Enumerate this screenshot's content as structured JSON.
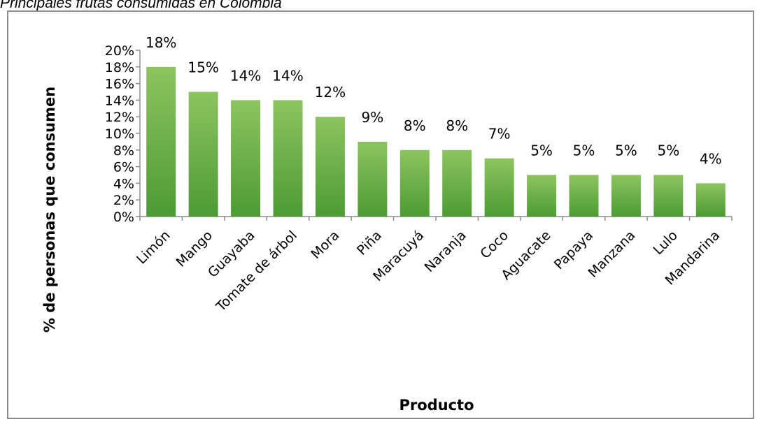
{
  "caption": "Principales frutas consumidas en Colombia",
  "chart_data": {
    "type": "bar",
    "title": "",
    "xlabel": "Producto",
    "ylabel": "% de personas que consumen",
    "categories": [
      "Limón",
      "Mango",
      "Guayaba",
      "Tomate de árbol",
      "Mora",
      "Piña",
      "Maracuyá",
      "Naranja",
      "Coco",
      "Aguacate",
      "Papaya",
      "Manzana",
      "Lulo",
      "Mandarina"
    ],
    "values": [
      18,
      15,
      14,
      14,
      12,
      9,
      8,
      8,
      7,
      5,
      5,
      5,
      5,
      4
    ],
    "data_labels": [
      "18%",
      "15%",
      "14%",
      "14%",
      "12%",
      "9%",
      "8%",
      "8%",
      "7%",
      "5%",
      "5%",
      "5%",
      "5%",
      "4%"
    ],
    "yticks": [
      "0%",
      "2%",
      "4%",
      "6%",
      "8%",
      "10%",
      "12%",
      "14%",
      "16%",
      "18%",
      "20%"
    ],
    "ylim": [
      0,
      20
    ],
    "grid": false,
    "legend": "none",
    "bar_color": "#79b84a",
    "bar_color_dark": "#3f8f2a"
  }
}
